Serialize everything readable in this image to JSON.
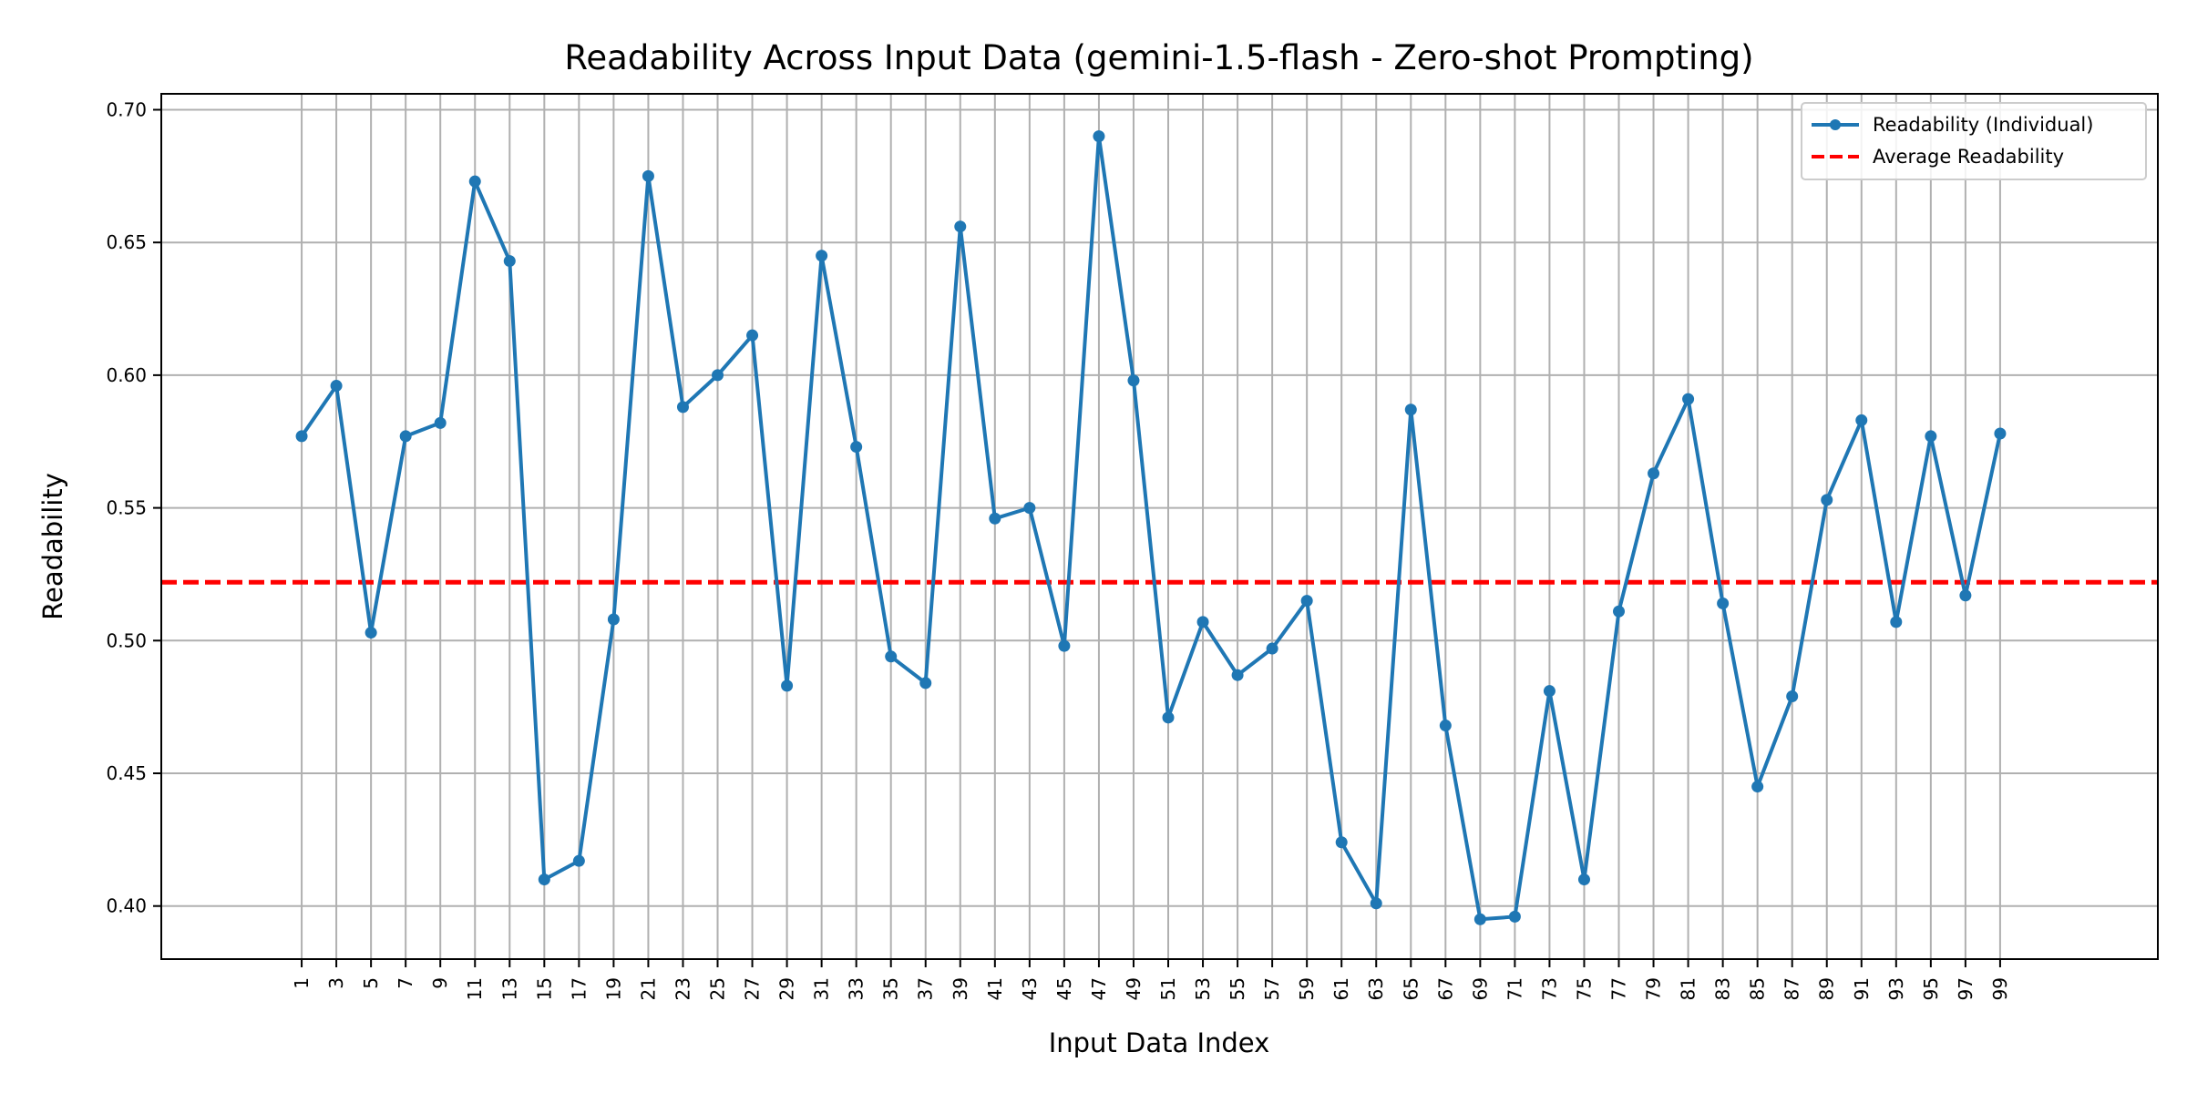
{
  "chart_data": {
    "type": "line",
    "title": "Readability Across Input Data (gemini-1.5-flash - Zero-shot Prompting)",
    "xlabel": "Input Data Index",
    "ylabel": "Readability",
    "x": [
      1,
      3,
      5,
      7,
      9,
      11,
      13,
      15,
      17,
      19,
      21,
      23,
      25,
      27,
      29,
      31,
      33,
      35,
      37,
      39,
      41,
      43,
      45,
      47,
      49,
      51,
      53,
      55,
      57,
      59,
      61,
      63,
      65,
      67,
      69,
      71,
      73,
      75,
      77,
      79,
      81,
      83,
      85,
      87,
      89,
      91,
      93,
      95,
      97,
      99
    ],
    "xticks": [
      "1",
      "3",
      "5",
      "7",
      "9",
      "11",
      "13",
      "15",
      "17",
      "19",
      "21",
      "23",
      "25",
      "27",
      "29",
      "31",
      "33",
      "35",
      "37",
      "39",
      "41",
      "43",
      "45",
      "47",
      "49",
      "51",
      "53",
      "55",
      "57",
      "59",
      "61",
      "63",
      "65",
      "67",
      "69",
      "71",
      "73",
      "75",
      "77",
      "79",
      "81",
      "83",
      "85",
      "87",
      "89",
      "91",
      "93",
      "95",
      "97",
      "99"
    ],
    "xlim": [
      -7.1,
      108.1
    ],
    "ylim": [
      0.38,
      0.706
    ],
    "yticks": [
      0.4,
      0.45,
      0.5,
      0.55,
      0.6,
      0.65,
      0.7
    ],
    "ytick_labels": [
      "0.40",
      "0.45",
      "0.50",
      "0.55",
      "0.60",
      "0.65",
      "0.70"
    ],
    "grid": true,
    "legend_position": "top-right",
    "series": [
      {
        "name": "Readability (Individual)",
        "color": "#1f77b4",
        "style": "solid-with-markers",
        "values": [
          0.577,
          0.596,
          0.503,
          0.577,
          0.582,
          0.673,
          0.643,
          0.41,
          0.417,
          0.508,
          0.675,
          0.588,
          0.6,
          0.615,
          0.483,
          0.645,
          0.573,
          0.494,
          0.484,
          0.656,
          0.546,
          0.55,
          0.498,
          0.69,
          0.598,
          0.471,
          0.507,
          0.487,
          0.497,
          0.515,
          0.424,
          0.401,
          0.587,
          0.468,
          0.395,
          0.396,
          0.481,
          0.41,
          0.511,
          0.563,
          0.591,
          0.514,
          0.445,
          0.479,
          0.553,
          0.583,
          0.507,
          0.577,
          0.517,
          0.578
        ]
      },
      {
        "name": "Average Readability",
        "color": "#ff0000",
        "style": "dashed",
        "value": 0.522
      }
    ]
  }
}
